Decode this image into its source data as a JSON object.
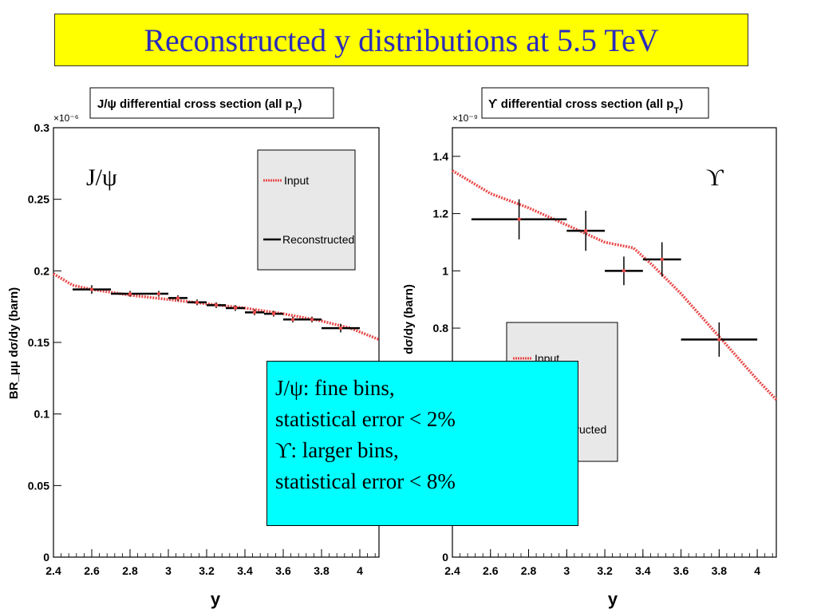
{
  "slide_title": "Reconstructed y distributions at 5.5 TeV",
  "callout": {
    "lines": [
      "J/ψ: fine bins,",
      "statistical error < 2%",
      " ϒ: larger bins,",
      "statistical error < 8%"
    ]
  },
  "colors": {
    "title_bg": "#ffff00",
    "title_text": "#2b2bbd",
    "callout_bg": "#00ffff",
    "input_curve": "#e84848",
    "reconstructed": "#000000"
  },
  "chart_data": [
    {
      "type": "line",
      "title": "J/ψ differential cross section (all p",
      "title_subscript": "T",
      "title_close": ")",
      "particle_label": "J/ψ",
      "xlabel": "y",
      "ylabel": "BR_μμ dσ/dy (barn)",
      "scale_note": "×10⁻⁶",
      "xlim": [
        2.4,
        4.1
      ],
      "ylim": [
        0,
        0.3
      ],
      "x_ticks": [
        "2.4",
        "2.6",
        "2.8",
        "3",
        "3.2",
        "3.4",
        "3.6",
        "3.8",
        "4"
      ],
      "y_ticks": [
        "0",
        "0.05",
        "0.1",
        "0.15",
        "0.2",
        "0.25",
        "0.3"
      ],
      "legend": {
        "placement": "top-right",
        "entries": [
          "Input",
          "Reconstructed"
        ]
      },
      "series": [
        {
          "name": "Input",
          "x": [
            2.4,
            2.5,
            2.6,
            2.8,
            3.0,
            3.2,
            3.4,
            3.6,
            3.8,
            3.95,
            4.1
          ],
          "y": [
            0.198,
            0.19,
            0.187,
            0.183,
            0.18,
            0.177,
            0.174,
            0.17,
            0.165,
            0.16,
            0.152
          ]
        },
        {
          "name": "Reconstructed",
          "bins": [
            [
              2.5,
              2.7
            ],
            [
              2.7,
              2.9
            ],
            [
              2.9,
              3.0
            ],
            [
              3.0,
              3.1
            ],
            [
              3.1,
              3.2
            ],
            [
              3.2,
              3.3
            ],
            [
              3.3,
              3.4
            ],
            [
              3.4,
              3.5
            ],
            [
              3.5,
              3.6
            ],
            [
              3.6,
              3.7
            ],
            [
              3.7,
              3.8
            ],
            [
              3.8,
              4.0
            ]
          ],
          "y": [
            0.187,
            0.184,
            0.184,
            0.181,
            0.178,
            0.176,
            0.174,
            0.171,
            0.17,
            0.166,
            0.166,
            0.16
          ],
          "err": [
            0.003,
            0.002,
            0.002,
            0.002,
            0.002,
            0.002,
            0.002,
            0.002,
            0.002,
            0.002,
            0.002,
            0.003
          ]
        }
      ]
    },
    {
      "type": "line",
      "title": "ϒ differential cross section (all p",
      "title_subscript": "T",
      "title_close": ")",
      "particle_label": "ϒ",
      "xlabel": "y",
      "ylabel": "dσ/dy (barn)",
      "scale_note": "×10⁻⁹",
      "xlim": [
        2.4,
        4.1
      ],
      "ylim": [
        0,
        1.5
      ],
      "x_ticks": [
        "2.4",
        "2.6",
        "2.8",
        "3",
        "3.2",
        "3.4",
        "3.6",
        "3.8",
        "4"
      ],
      "y_ticks": [
        "0",
        "0.8",
        "1",
        "1.2",
        "1.4"
      ],
      "legend": {
        "placement": "middle-left",
        "entries": [
          "Input",
          "Reconstructed"
        ]
      },
      "series": [
        {
          "name": "Input",
          "x": [
            2.4,
            2.6,
            2.8,
            3.0,
            3.2,
            3.35,
            3.45,
            3.6,
            3.8,
            4.0,
            4.1
          ],
          "y": [
            1.35,
            1.27,
            1.22,
            1.16,
            1.1,
            1.08,
            1.02,
            0.92,
            0.77,
            0.62,
            0.55
          ]
        },
        {
          "name": "Reconstructed",
          "bins": [
            [
              2.5,
              3.0
            ],
            [
              3.0,
              3.2
            ],
            [
              3.2,
              3.4
            ],
            [
              3.4,
              3.6
            ],
            [
              3.6,
              4.0
            ]
          ],
          "y": [
            1.18,
            1.14,
            1.0,
            1.04,
            0.76
          ],
          "err": [
            0.07,
            0.07,
            0.05,
            0.06,
            0.06
          ]
        }
      ]
    }
  ]
}
